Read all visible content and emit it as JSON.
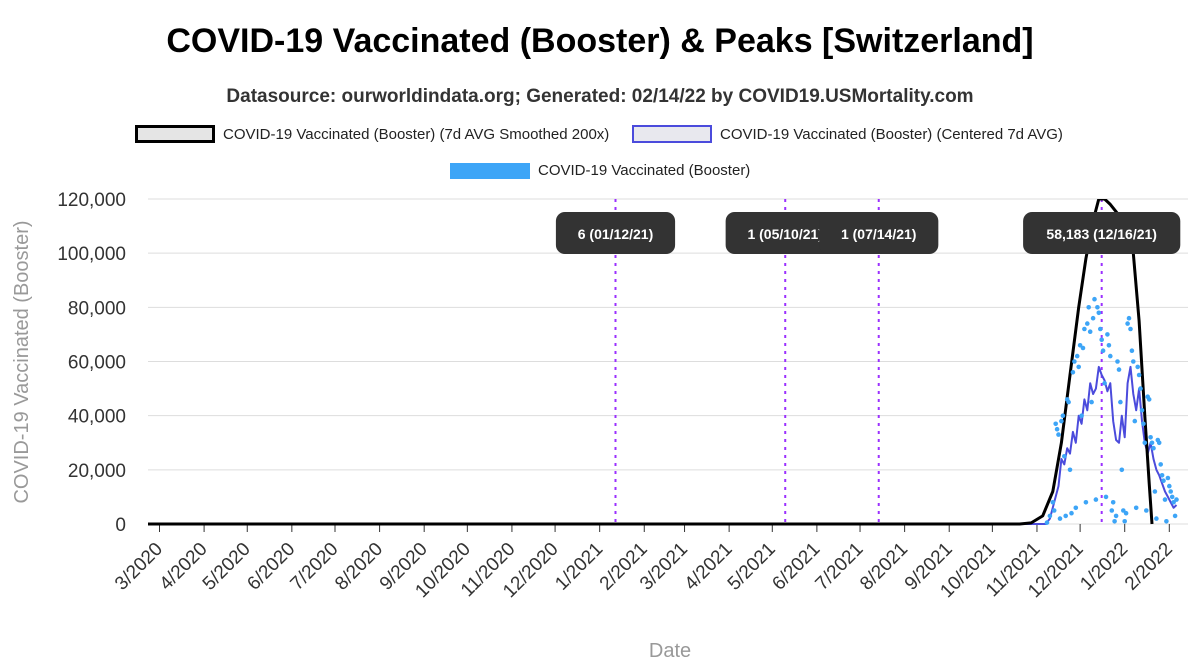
{
  "title": "COVID-19 Vaccinated (Booster) & Peaks [Switzerland]",
  "subtitle": "Datasource: ourworldindata.org; Generated: 02/14/22 by COVID19.USMortality.com",
  "legend": [
    {
      "label": "COVID-19 Vaccinated (Booster) (7d AVG Smoothed 200x)",
      "color": "#000000"
    },
    {
      "label": "COVID-19 Vaccinated (Booster) (Centered 7d AVG)",
      "color": "#4b4bdc"
    },
    {
      "label": "COVID-19 Vaccinated (Booster)",
      "color": "#3da5f7"
    }
  ],
  "chart_data": {
    "type": "line",
    "xlabel": "Date",
    "ylabel": "COVID-19 Vaccinated (Booster)",
    "ylim": [
      0,
      120000
    ],
    "xlim": [
      "2020-02-22",
      "2022-02-14"
    ],
    "yticks": [
      0,
      20000,
      40000,
      60000,
      80000,
      100000,
      120000
    ],
    "ytick_labels": [
      "0",
      "20,000",
      "40,000",
      "60,000",
      "80,000",
      "100,000",
      "120,000"
    ],
    "xticks": [
      "2020-03-01",
      "2020-04-01",
      "2020-05-01",
      "2020-06-01",
      "2020-07-01",
      "2020-08-01",
      "2020-09-01",
      "2020-10-01",
      "2020-11-01",
      "2020-12-01",
      "2021-01-01",
      "2021-02-01",
      "2021-03-01",
      "2021-04-01",
      "2021-05-01",
      "2021-06-01",
      "2021-07-01",
      "2021-08-01",
      "2021-09-01",
      "2021-10-01",
      "2021-11-01",
      "2021-12-01",
      "2022-01-01",
      "2022-02-01"
    ],
    "xtick_labels": [
      "3/2020",
      "4/2020",
      "5/2020",
      "6/2020",
      "7/2020",
      "8/2020",
      "9/2020",
      "10/2020",
      "11/2020",
      "12/2020",
      "1/2021",
      "2/2021",
      "3/2021",
      "4/2021",
      "5/2021",
      "6/2021",
      "7/2021",
      "8/2021",
      "9/2021",
      "10/2021",
      "11/2021",
      "12/2021",
      "1/2022",
      "2/2022"
    ],
    "grid": true,
    "legend_position": "top",
    "series": [
      {
        "name": "COVID-19 Vaccinated (Booster) (7d AVG Smoothed 200x)",
        "color": "#000000",
        "points": [
          [
            "2020-02-22",
            0
          ],
          [
            "2021-10-20",
            0
          ],
          [
            "2021-10-28",
            400
          ],
          [
            "2021-11-05",
            3000
          ],
          [
            "2021-11-12",
            12000
          ],
          [
            "2021-11-18",
            30000
          ],
          [
            "2021-11-24",
            55000
          ],
          [
            "2021-11-30",
            80000
          ],
          [
            "2021-12-05",
            98000
          ],
          [
            "2021-12-10",
            112000
          ],
          [
            "2021-12-14",
            120000
          ],
          [
            "2021-12-18",
            120000
          ],
          [
            "2021-12-22",
            118000
          ],
          [
            "2021-12-28",
            114000
          ],
          [
            "2022-01-03",
            110000
          ],
          [
            "2022-01-07",
            100000
          ],
          [
            "2022-01-11",
            75000
          ],
          [
            "2022-01-15",
            40000
          ],
          [
            "2022-01-18",
            15000
          ],
          [
            "2022-01-20",
            0
          ]
        ]
      },
      {
        "name": "COVID-19 Vaccinated (Booster) (Centered 7d AVG)",
        "color": "#4b4bdc",
        "points": [
          [
            "2020-02-22",
            0
          ],
          [
            "2021-11-07",
            0
          ],
          [
            "2021-11-10",
            2000
          ],
          [
            "2021-11-13",
            8000
          ],
          [
            "2021-11-16",
            14000
          ],
          [
            "2021-11-18",
            24000
          ],
          [
            "2021-11-20",
            22000
          ],
          [
            "2021-11-22",
            28000
          ],
          [
            "2021-11-24",
            26000
          ],
          [
            "2021-11-26",
            34000
          ],
          [
            "2021-11-28",
            30000
          ],
          [
            "2021-11-30",
            40000
          ],
          [
            "2021-12-02",
            37000
          ],
          [
            "2021-12-04",
            46000
          ],
          [
            "2021-12-06",
            42000
          ],
          [
            "2021-12-08",
            52000
          ],
          [
            "2021-12-10",
            48000
          ],
          [
            "2021-12-12",
            50000
          ],
          [
            "2021-12-14",
            58000
          ],
          [
            "2021-12-16",
            55000
          ],
          [
            "2021-12-18",
            53000
          ],
          [
            "2021-12-20",
            49000
          ],
          [
            "2021-12-22",
            52000
          ],
          [
            "2021-12-24",
            38000
          ],
          [
            "2021-12-26",
            31000
          ],
          [
            "2021-12-28",
            30000
          ],
          [
            "2021-12-30",
            40000
          ],
          [
            "2022-01-01",
            32000
          ],
          [
            "2022-01-03",
            52000
          ],
          [
            "2022-01-05",
            58000
          ],
          [
            "2022-01-07",
            48000
          ],
          [
            "2022-01-09",
            42000
          ],
          [
            "2022-01-11",
            50000
          ],
          [
            "2022-01-13",
            38000
          ],
          [
            "2022-01-15",
            30000
          ],
          [
            "2022-01-17",
            26000
          ],
          [
            "2022-01-19",
            30000
          ],
          [
            "2022-01-21",
            24000
          ],
          [
            "2022-01-23",
            20000
          ],
          [
            "2022-01-25",
            18000
          ],
          [
            "2022-01-27",
            15000
          ],
          [
            "2022-01-29",
            12000
          ],
          [
            "2022-01-31",
            10000
          ],
          [
            "2022-02-02",
            8000
          ],
          [
            "2022-02-04",
            6000
          ],
          [
            "2022-02-06",
            7000
          ]
        ]
      },
      {
        "name": "COVID-19 Vaccinated (Booster)",
        "color": "#3da5f7",
        "marker": "dot",
        "points": [
          [
            "2021-11-08",
            500
          ],
          [
            "2021-11-10",
            3000
          ],
          [
            "2021-11-12",
            8000
          ],
          [
            "2021-11-13",
            5000
          ],
          [
            "2021-11-14",
            37000
          ],
          [
            "2021-11-15",
            35000
          ],
          [
            "2021-11-16",
            33000
          ],
          [
            "2021-11-17",
            2000
          ],
          [
            "2021-11-18",
            38000
          ],
          [
            "2021-11-19",
            40000
          ],
          [
            "2021-11-20",
            25000
          ],
          [
            "2021-11-21",
            3000
          ],
          [
            "2021-11-22",
            46000
          ],
          [
            "2021-11-23",
            45000
          ],
          [
            "2021-11-24",
            20000
          ],
          [
            "2021-11-25",
            4000
          ],
          [
            "2021-11-26",
            56000
          ],
          [
            "2021-11-27",
            60000
          ],
          [
            "2021-11-28",
            6000
          ],
          [
            "2021-11-29",
            62000
          ],
          [
            "2021-11-30",
            58000
          ],
          [
            "2021-12-01",
            66000
          ],
          [
            "2021-12-02",
            40000
          ],
          [
            "2021-12-03",
            65000
          ],
          [
            "2021-12-04",
            72000
          ],
          [
            "2021-12-05",
            8000
          ],
          [
            "2021-12-06",
            74000
          ],
          [
            "2021-12-07",
            80000
          ],
          [
            "2021-12-08",
            71000
          ],
          [
            "2021-12-09",
            45000
          ],
          [
            "2021-12-10",
            76000
          ],
          [
            "2021-12-11",
            83000
          ],
          [
            "2021-12-12",
            9000
          ],
          [
            "2021-12-13",
            80000
          ],
          [
            "2021-12-14",
            78000
          ],
          [
            "2021-12-15",
            72000
          ],
          [
            "2021-12-16",
            68000
          ],
          [
            "2021-12-17",
            64000
          ],
          [
            "2021-12-18",
            52000
          ],
          [
            "2021-12-19",
            10000
          ],
          [
            "2021-12-20",
            70000
          ],
          [
            "2021-12-21",
            66000
          ],
          [
            "2021-12-22",
            62000
          ],
          [
            "2021-12-23",
            5000
          ],
          [
            "2021-12-24",
            8000
          ],
          [
            "2021-12-25",
            1000
          ],
          [
            "2021-12-26",
            3000
          ],
          [
            "2021-12-27",
            60000
          ],
          [
            "2021-12-28",
            57000
          ],
          [
            "2021-12-29",
            45000
          ],
          [
            "2021-12-30",
            20000
          ],
          [
            "2021-12-31",
            5000
          ],
          [
            "2022-01-01",
            1000
          ],
          [
            "2022-01-02",
            4000
          ],
          [
            "2022-01-03",
            74000
          ],
          [
            "2022-01-04",
            76000
          ],
          [
            "2022-01-05",
            72000
          ],
          [
            "2022-01-06",
            64000
          ],
          [
            "2022-01-07",
            60000
          ],
          [
            "2022-01-08",
            38000
          ],
          [
            "2022-01-09",
            6000
          ],
          [
            "2022-01-10",
            58000
          ],
          [
            "2022-01-11",
            55000
          ],
          [
            "2022-01-12",
            50000
          ],
          [
            "2022-01-13",
            42000
          ],
          [
            "2022-01-14",
            37000
          ],
          [
            "2022-01-15",
            30000
          ],
          [
            "2022-01-16",
            5000
          ],
          [
            "2022-01-17",
            47000
          ],
          [
            "2022-01-18",
            46000
          ],
          [
            "2022-01-19",
            32000
          ],
          [
            "2022-01-20",
            30000
          ],
          [
            "2022-01-21",
            28000
          ],
          [
            "2022-01-22",
            12000
          ],
          [
            "2022-01-23",
            2000
          ],
          [
            "2022-01-24",
            31000
          ],
          [
            "2022-01-25",
            30000
          ],
          [
            "2022-01-26",
            22000
          ],
          [
            "2022-01-27",
            18000
          ],
          [
            "2022-01-28",
            16000
          ],
          [
            "2022-01-29",
            9000
          ],
          [
            "2022-01-30",
            1000
          ],
          [
            "2022-01-31",
            17000
          ],
          [
            "2022-02-01",
            14000
          ],
          [
            "2022-02-02",
            12000
          ],
          [
            "2022-02-03",
            10000
          ],
          [
            "2022-02-04",
            8000
          ],
          [
            "2022-02-05",
            3000
          ],
          [
            "2022-02-06",
            9000
          ]
        ]
      }
    ],
    "peaks": [
      {
        "date": "2021-01-12",
        "label": "6 (01/12/21)"
      },
      {
        "date": "2021-05-10",
        "label": "1 (05/10/21)"
      },
      {
        "date": "2021-07-14",
        "label": "1 (07/14/21)"
      },
      {
        "date": "2021-12-16",
        "label": "58,183 (12/16/21)"
      }
    ],
    "peak_line_color": "#9b30ff"
  }
}
